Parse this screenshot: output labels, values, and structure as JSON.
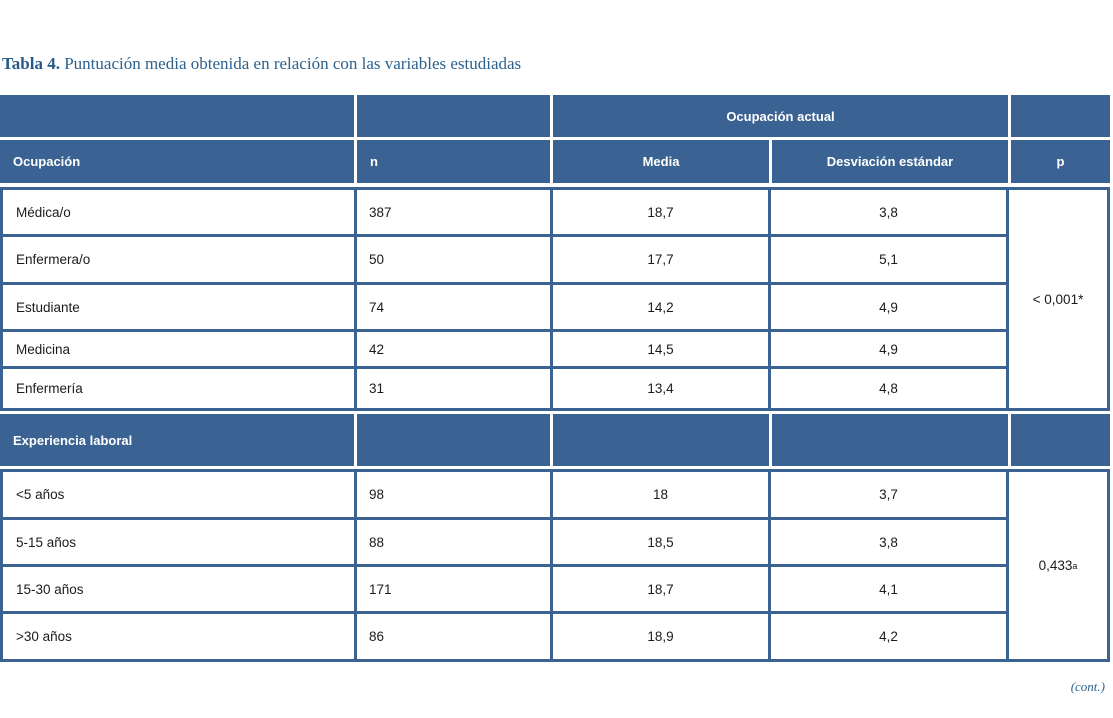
{
  "page": {
    "title_bold": "Tabla 4.",
    "title_rest": " Puntuación media obtenida en relación con las variables estudiadas",
    "continuation_note": "(cont.)"
  },
  "colors": {
    "header_navy": "#3a6292",
    "title_blue": "#2d618e",
    "cell_background": "#ffffff",
    "data_text": "#1b1b1b"
  },
  "table": {
    "span_header": "Ocupación actual",
    "columns": [
      "Ocupación",
      "n",
      "Media",
      "Desviación estándar",
      "p"
    ],
    "section1": {
      "rows": [
        {
          "label": "Médica/o",
          "n": "387",
          "media": "18,7",
          "de": "3,8"
        },
        {
          "label": "Enfermera/o",
          "n": "50",
          "media": "17,7",
          "de": "5,1"
        },
        {
          "label": "Estudiante",
          "n": "74",
          "media": "14,2",
          "de": "4,9"
        },
        {
          "label": "Medicina",
          "n": "42",
          "media": "14,5",
          "de": "4,9"
        },
        {
          "label": "Enfermería",
          "n": "31",
          "media": "13,4",
          "de": "4,8"
        }
      ],
      "p_value": "< 0,001*"
    },
    "section2": {
      "header": "Experiencia laboral",
      "rows": [
        {
          "label": "<5 años",
          "n": "98",
          "media": "18",
          "de": "3,7"
        },
        {
          "label": "5-15 años",
          "n": "88",
          "media": "18,5",
          "de": "3,8"
        },
        {
          "label": "15-30 años",
          "n": "171",
          "media": "18,7",
          "de": "4,1"
        },
        {
          "label": ">30 años",
          "n": "86",
          "media": "18,9",
          "de": "4,2"
        }
      ],
      "p_value": "0,433",
      "p_superscript": "a"
    }
  }
}
